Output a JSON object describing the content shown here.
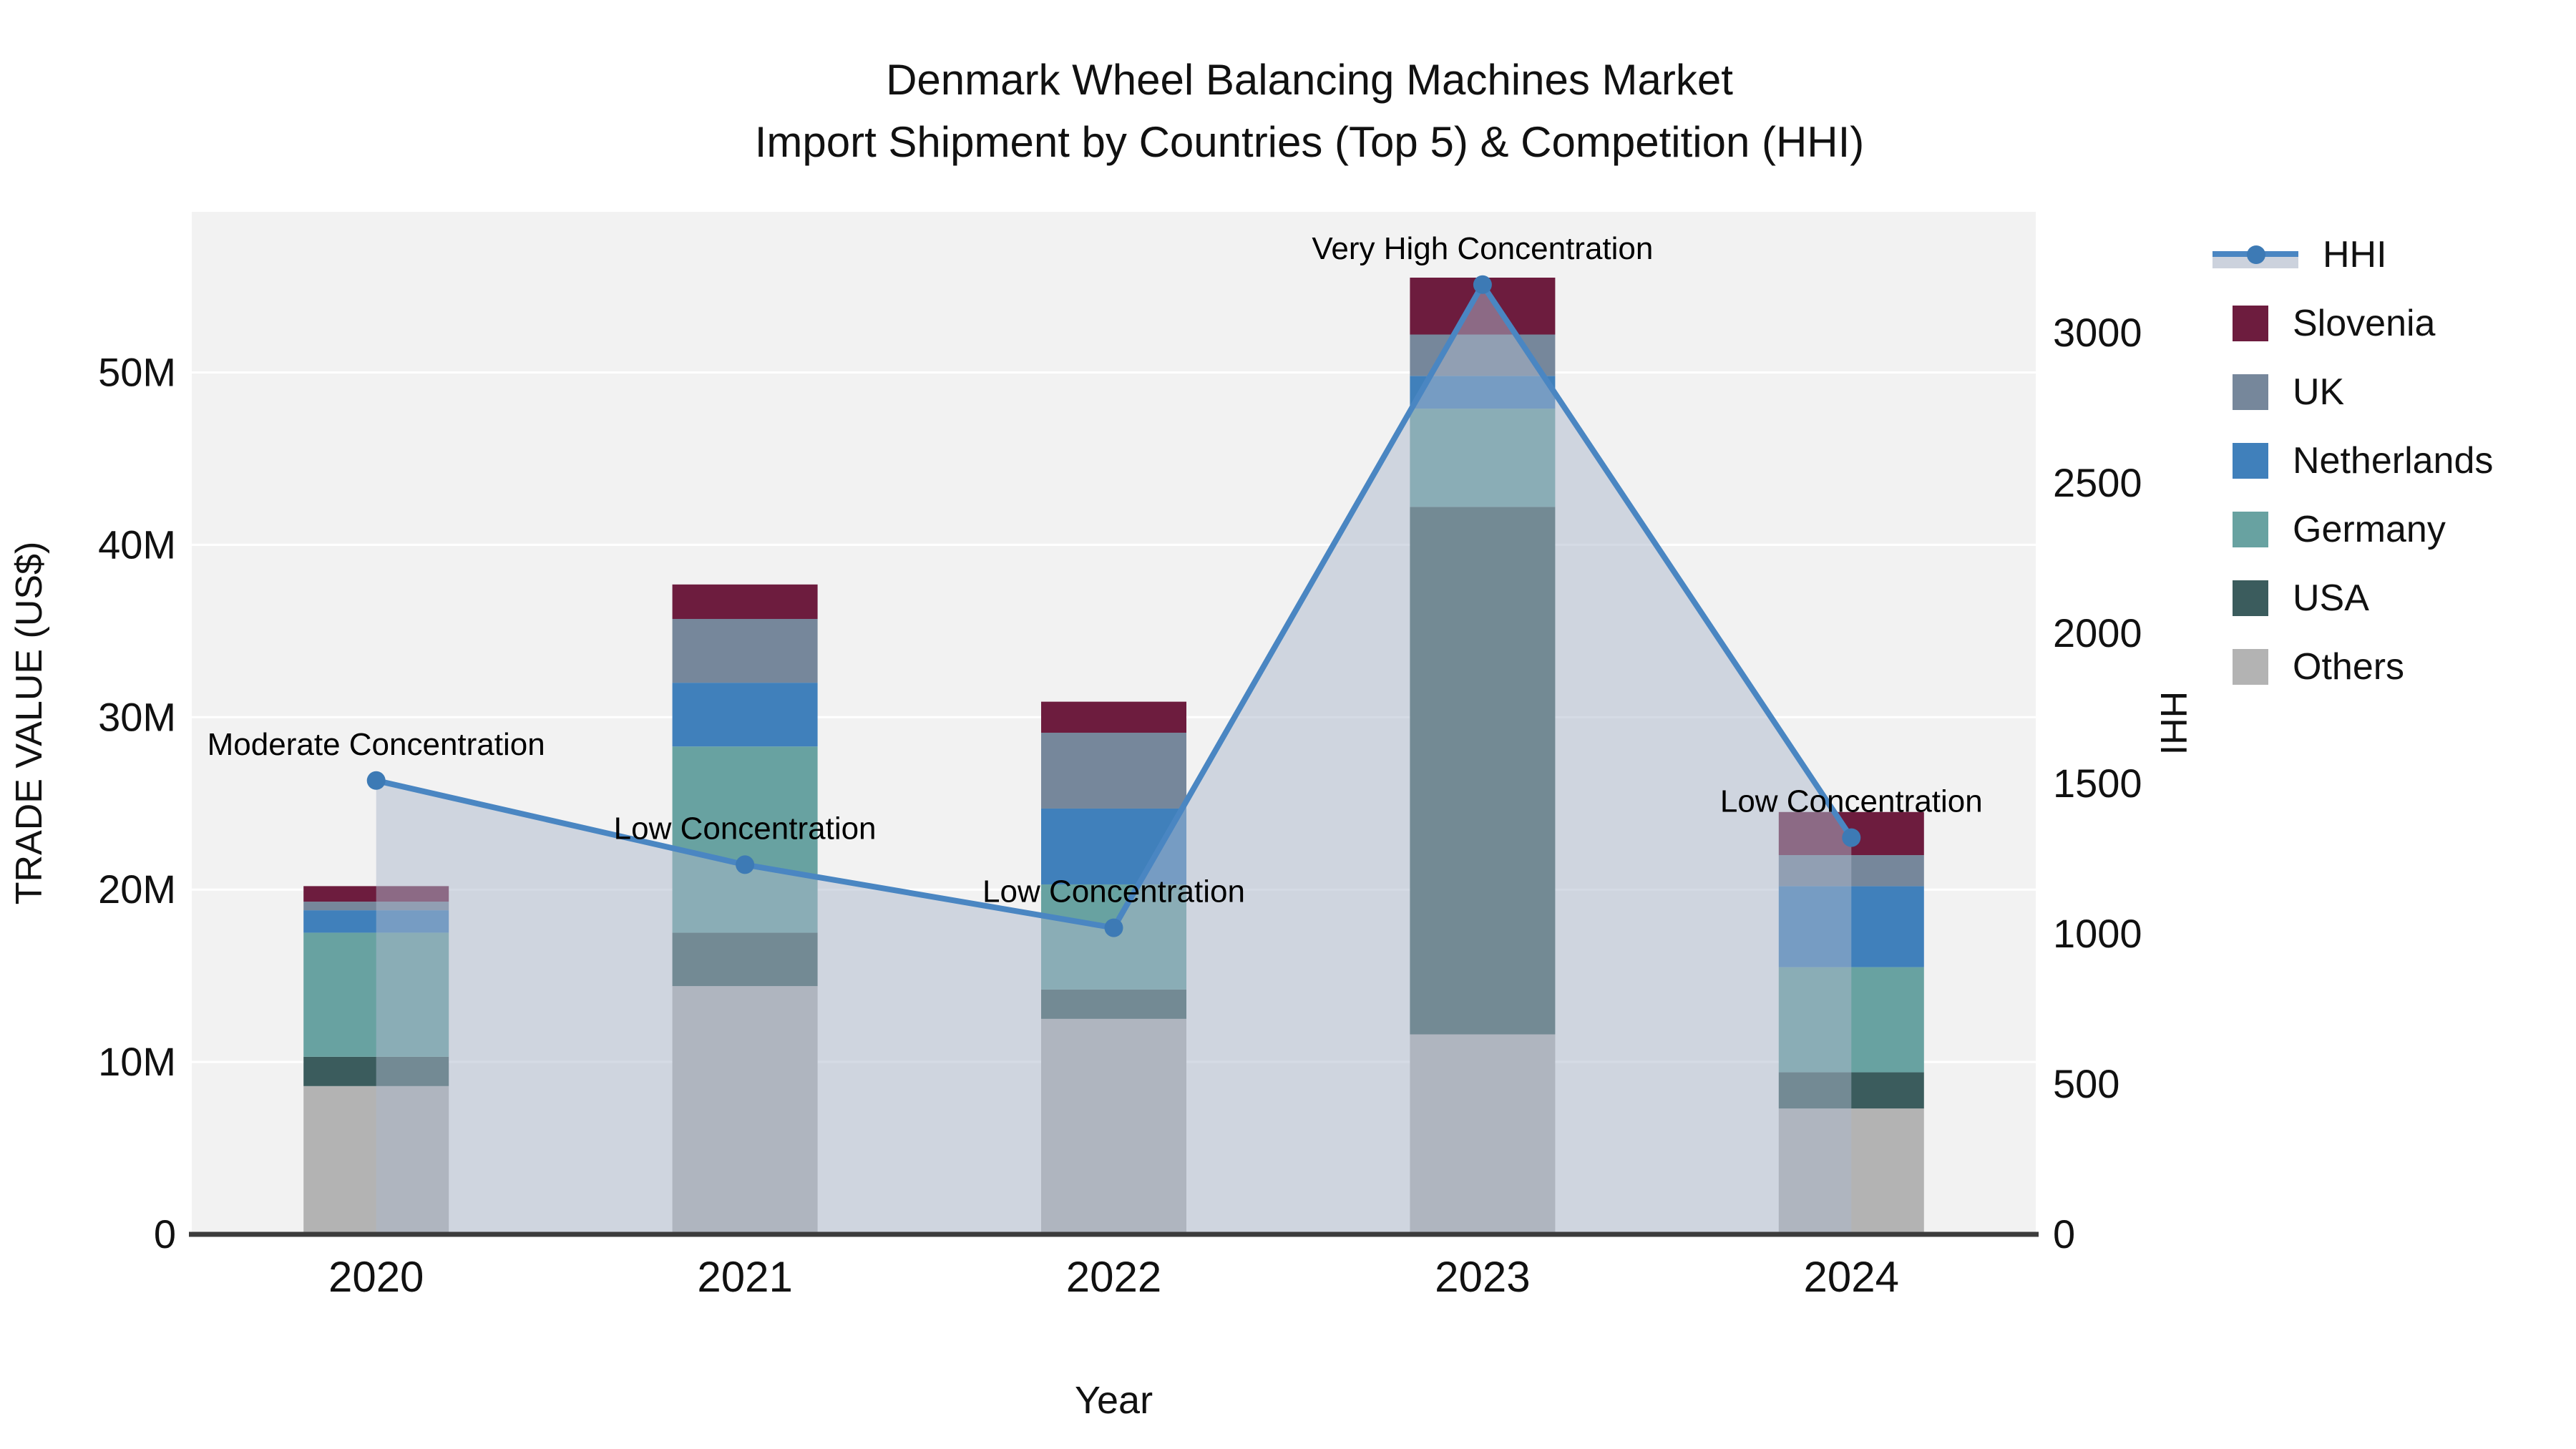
{
  "title": {
    "line1": "Denmark Wheel Balancing Machines Market",
    "line2": "Import Shipment by Countries (Top 5) & Competition (HHI)"
  },
  "axes": {
    "x_label": "Year",
    "y_left_label": "TRADE VALUE (US$)",
    "y_right_label": "HHI",
    "y_left_ticks": [
      "0",
      "10M",
      "20M",
      "30M",
      "40M",
      "50M"
    ],
    "y_right_ticks": [
      "0",
      "500",
      "1000",
      "1500",
      "2000",
      "2500",
      "3000"
    ]
  },
  "legend": {
    "items": [
      {
        "label": "HHI",
        "type": "line",
        "color": "#4a86c2"
      },
      {
        "label": "Slovenia",
        "type": "patch",
        "color": "#6d1c3e"
      },
      {
        "label": "UK",
        "type": "patch",
        "color": "#76879b"
      },
      {
        "label": "Netherlands",
        "type": "patch",
        "color": "#4080bb"
      },
      {
        "label": "Germany",
        "type": "patch",
        "color": "#68a2a1"
      },
      {
        "label": "USA",
        "type": "patch",
        "color": "#3b5c5d"
      },
      {
        "label": "Others",
        "type": "patch",
        "color": "#b3b3b3"
      }
    ]
  },
  "chart_data": {
    "type": "bar",
    "subtype": "stacked-bars-with-line",
    "categories": [
      "2020",
      "2021",
      "2022",
      "2023",
      "2024"
    ],
    "stack_order_bottom_to_top": [
      "Others",
      "USA",
      "Germany",
      "Netherlands",
      "UK",
      "Slovenia"
    ],
    "value_unit": "million US$",
    "series": [
      {
        "name": "Others",
        "color": "#b3b3b3",
        "values": [
          8.6,
          14.4,
          12.5,
          11.6,
          7.3
        ]
      },
      {
        "name": "USA",
        "color": "#3b5c5d",
        "values": [
          1.7,
          3.1,
          1.7,
          30.6,
          2.1
        ]
      },
      {
        "name": "Germany",
        "color": "#68a2a1",
        "values": [
          7.2,
          10.8,
          6.1,
          5.7,
          6.1
        ]
      },
      {
        "name": "Netherlands",
        "color": "#4080bb",
        "values": [
          1.3,
          3.7,
          4.4,
          1.9,
          4.7
        ]
      },
      {
        "name": "UK",
        "color": "#76879b",
        "values": [
          0.5,
          3.7,
          4.4,
          2.4,
          1.8
        ]
      },
      {
        "name": "Slovenia",
        "color": "#6d1c3e",
        "values": [
          0.9,
          2.0,
          1.8,
          3.3,
          2.5
        ]
      }
    ],
    "bar_totals": [
      20.2,
      37.7,
      30.9,
      55.5,
      24.5
    ],
    "line_series": {
      "name": "HHI",
      "axis": "right",
      "values": [
        1510,
        1230,
        1020,
        3160,
        1320
      ],
      "color": "#4a86c2",
      "marker": "circle",
      "area_fill": "rgba(172,184,204,0.5)"
    },
    "annotations": [
      {
        "x": "2020",
        "text": "Moderate Concentration"
      },
      {
        "x": "2021",
        "text": "Low Concentration"
      },
      {
        "x": "2022",
        "text": "Low Concentration"
      },
      {
        "x": "2023",
        "text": "Very High Concentration"
      },
      {
        "x": "2024",
        "text": "Low Concentration"
      }
    ],
    "title": "Denmark Wheel Balancing Machines Market — Import Shipment by Countries (Top 5) & Competition (HHI)",
    "xlabel": "Year",
    "ylabel_left": "TRADE VALUE (US$)",
    "ylabel_right": "HHI",
    "ylim_left": [
      0,
      59.3
    ],
    "ylim_right": [
      0,
      3400
    ],
    "gridlines": "horizontal, every 10M, white on light-gray plot background",
    "legend_position": "outside right",
    "colors": {
      "plot_background": "#f2f2f2",
      "figure_background": "#ffffff",
      "gridline": "#ffffff",
      "baseline_axis": "#3c3c3c",
      "text": "#111111"
    }
  }
}
